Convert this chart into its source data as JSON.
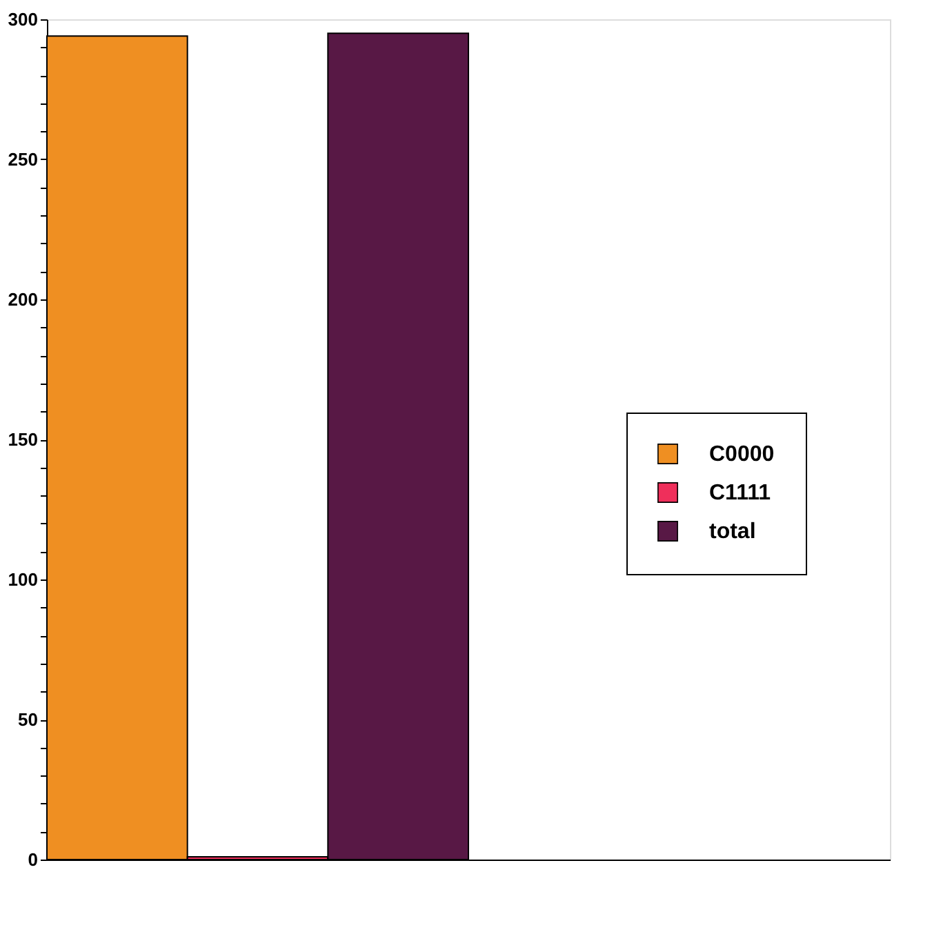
{
  "chart_data": {
    "type": "bar",
    "categories": [
      null
    ],
    "series": [
      {
        "name": "C0000",
        "color": "#ef8f22",
        "values": [
          294
        ]
      },
      {
        "name": "C1111",
        "color": "#ef2f5b",
        "values": [
          1
        ]
      },
      {
        "name": "total",
        "color": "#581845",
        "values": [
          295
        ]
      }
    ],
    "ylim": [
      0,
      300
    ],
    "yticks": [
      0,
      {
        "value": 10,
        "label": null
      },
      {
        "value": 20,
        "label": null
      },
      {
        "value": 30,
        "label": null
      },
      {
        "value": 40,
        "label": null
      },
      50,
      {
        "value": 60,
        "label": null
      },
      {
        "value": 70,
        "label": null
      },
      {
        "value": 80,
        "label": null
      },
      {
        "value": 90,
        "label": null
      },
      100,
      {
        "value": 110,
        "label": null
      },
      {
        "value": 120,
        "label": null
      },
      {
        "value": 130,
        "label": null
      },
      {
        "value": 140,
        "label": null
      },
      150,
      {
        "value": 160,
        "label": null
      },
      {
        "value": 170,
        "label": null
      },
      {
        "value": 180,
        "label": null
      },
      {
        "value": 190,
        "label": null
      },
      200,
      {
        "value": 210,
        "label": null
      },
      {
        "value": 220,
        "label": null
      },
      {
        "value": 230,
        "label": null
      },
      {
        "value": 240,
        "label": null
      },
      250,
      {
        "value": 260,
        "label": null
      },
      {
        "value": 270,
        "label": null
      },
      {
        "value": 280,
        "label": null
      },
      {
        "value": 290,
        "label": null
      },
      300
    ],
    "grid": false,
    "legend": "right",
    "tick_labels": "y"
  }
}
